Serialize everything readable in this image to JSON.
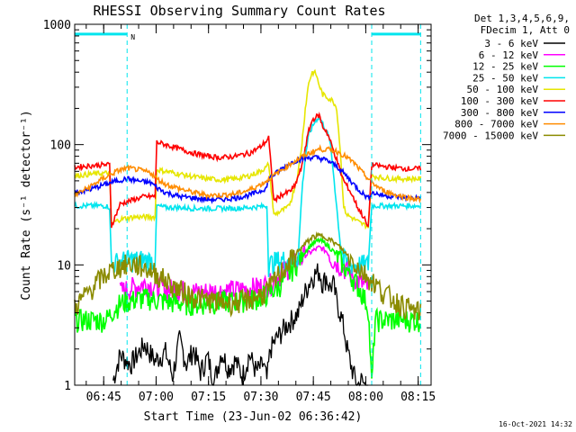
{
  "chart_data": {
    "type": "line",
    "title": "RHESSI Observing Summary Count Rates",
    "xlabel": "Start Time (23-Jun-02 06:36:42)",
    "ylabel": "Count Rate (s⁻¹ detector⁻¹)",
    "x_units": "minutes after 06:36:42",
    "xlim": [
      0,
      102
    ],
    "ylim": [
      1,
      1000
    ],
    "y_scale": "log",
    "x_ticks": [
      {
        "value": 8.3,
        "label": "06:45"
      },
      {
        "value": 23.3,
        "label": "07:00"
      },
      {
        "value": 38.3,
        "label": "07:15"
      },
      {
        "value": 53.3,
        "label": "07:30"
      },
      {
        "value": 68.3,
        "label": "07:45"
      },
      {
        "value": 83.3,
        "label": "08:00"
      },
      {
        "value": 98.3,
        "label": "08:15"
      }
    ],
    "y_ticks": [
      {
        "value": 1,
        "label": "1"
      },
      {
        "value": 10,
        "label": "10"
      },
      {
        "value": 100,
        "label": "100"
      },
      {
        "value": 1000,
        "label": "1000"
      }
    ],
    "legend_header": [
      "Det 1,3,4,5,6,9,",
      "FDecim 1, Att 0"
    ],
    "legend_position": "right",
    "timestamp": "16-Oct-2021 14:32",
    "night_marker": "N",
    "flag_bars": [
      {
        "x": [
          0,
          15
        ],
        "y": 830,
        "color": "#00e5ee"
      },
      {
        "x": [
          85,
          99
        ],
        "y": 830,
        "color": "#00e5ee"
      }
    ],
    "vlines": [
      {
        "x": 15,
        "style": "dashed",
        "color": "#00e5ee"
      },
      {
        "x": 85,
        "style": "dashed",
        "color": "#00e5ee"
      },
      {
        "x": 99,
        "style": "dashed",
        "color": "#00e5ee"
      }
    ],
    "series": [
      {
        "name": "3 - 6 keV",
        "color": "#000000",
        "x": [
          11,
          13,
          16,
          20,
          23,
          26,
          28,
          30,
          32,
          34,
          36,
          38,
          40,
          42,
          44,
          46,
          48,
          50,
          52,
          54,
          55,
          56,
          58,
          60,
          62,
          64,
          65,
          66,
          67,
          68,
          69,
          70,
          71,
          72,
          73,
          74,
          75,
          76,
          77,
          78,
          79,
          80,
          81,
          82,
          83,
          84
        ],
        "y": [
          1.1,
          1.8,
          1.5,
          2.2,
          1.6,
          1.9,
          1.2,
          2.4,
          1.5,
          2.0,
          1.3,
          1.7,
          1.1,
          1.9,
          1.4,
          1.6,
          1.2,
          1.8,
          1.3,
          1.5,
          1.1,
          2.0,
          2.5,
          3.0,
          3.5,
          4.0,
          5.0,
          6.0,
          7.0,
          8.0,
          8.5,
          9.0,
          7.0,
          8.0,
          6.5,
          7.0,
          5.0,
          4.0,
          3.0,
          2.0,
          1.5,
          1.2,
          1.0,
          1.1,
          1.0,
          1.0
        ]
      },
      {
        "name": "6 - 12 keV",
        "color": "#ff00ff",
        "x": [
          13,
          15,
          17,
          20,
          23,
          26,
          30,
          34,
          38,
          42,
          46,
          50,
          53,
          56,
          58,
          60,
          62,
          64,
          66,
          68,
          70,
          72,
          74,
          76,
          78,
          80,
          82,
          84
        ],
        "y": [
          6,
          6.3,
          6.6,
          7,
          6.7,
          6.4,
          6.2,
          6,
          6,
          6.1,
          6.2,
          6.4,
          6.6,
          7,
          8,
          9,
          10,
          11,
          12,
          13,
          14,
          13,
          11,
          10,
          9,
          8,
          7,
          6.5
        ]
      },
      {
        "name": "12 - 25 keV",
        "color": "#00ff00",
        "x": [
          0,
          5,
          9,
          11,
          13,
          15,
          18,
          21,
          24,
          28,
          32,
          36,
          40,
          44,
          48,
          51,
          54,
          56,
          58,
          60,
          62,
          64,
          66,
          68,
          70,
          72,
          74,
          76,
          78,
          80,
          82,
          84,
          85,
          86,
          88,
          90,
          92,
          94,
          96,
          98,
          99
        ],
        "y": [
          3.5,
          3.5,
          3.5,
          4.2,
          4.8,
          5,
          5.2,
          5.3,
          5.1,
          4.9,
          4.8,
          4.8,
          4.9,
          5,
          5.1,
          5.2,
          5.5,
          6,
          6.5,
          7.5,
          9,
          11,
          13,
          15,
          16,
          15,
          13,
          11,
          9,
          7.5,
          6,
          4.5,
          1,
          3.5,
          3.5,
          3.5,
          3.5,
          3.5,
          3.5,
          3.5,
          3.5
        ]
      },
      {
        "name": "25 - 50 keV",
        "color": "#00e5ee",
        "x": [
          0,
          5,
          9,
          10,
          10.5,
          12,
          15,
          18,
          20,
          22,
          23,
          23.5,
          26,
          30,
          34,
          38,
          42,
          46,
          50,
          53,
          55,
          55.5,
          57,
          59,
          61,
          63,
          64,
          65,
          66,
          67,
          68,
          69,
          70,
          71,
          72,
          73,
          74,
          75,
          76,
          77,
          78,
          80,
          82,
          84,
          85,
          88,
          92,
          96,
          99
        ],
        "y": [
          31,
          31,
          31,
          30,
          10,
          10.5,
          11,
          11,
          11,
          11,
          11,
          31,
          30,
          30,
          29.5,
          29.5,
          29.5,
          29.5,
          30,
          30.5,
          31,
          10,
          10.5,
          11,
          11,
          11.5,
          12,
          40,
          80,
          120,
          140,
          160,
          170,
          150,
          130,
          110,
          60,
          30,
          15,
          11,
          10.5,
          10,
          10,
          10,
          31,
          31,
          31,
          31,
          31
        ]
      },
      {
        "name": "50 - 100 keV",
        "color": "#e6e600",
        "x": [
          0,
          5,
          9,
          10,
          10.5,
          13,
          17,
          20,
          22,
          23,
          23.5,
          26,
          30,
          34,
          38,
          42,
          46,
          50,
          53,
          55,
          55.5,
          57,
          59,
          61,
          62,
          63,
          64,
          65,
          66,
          67,
          68,
          69,
          70,
          71,
          72,
          73,
          74,
          75,
          76,
          77,
          78,
          79,
          80,
          82,
          84,
          85,
          88,
          92,
          96,
          99
        ],
        "y": [
          55,
          57,
          58,
          58,
          22,
          24,
          25,
          25,
          25,
          25,
          62,
          60,
          57,
          54,
          52,
          51,
          52,
          55,
          60,
          65,
          70,
          26,
          28,
          30,
          35,
          45,
          60,
          100,
          200,
          330,
          400,
          390,
          310,
          260,
          250,
          240,
          230,
          200,
          90,
          30,
          26,
          25,
          24,
          22,
          21,
          55,
          53,
          52,
          52,
          52
        ]
      },
      {
        "name": "100 - 300 keV",
        "color": "#ff0000",
        "x": [
          0,
          5,
          9,
          10,
          10.5,
          13,
          17,
          20,
          22,
          23,
          23.5,
          26,
          30,
          34,
          38,
          42,
          46,
          50,
          53,
          55,
          55.5,
          57,
          59,
          61,
          62,
          63,
          64,
          65,
          66,
          67,
          68,
          69,
          70,
          71,
          72,
          73,
          74,
          75,
          76,
          77,
          78,
          79,
          80,
          81,
          82,
          83,
          84,
          85,
          88,
          92,
          96,
          99
        ],
        "y": [
          65,
          67,
          68,
          68,
          21,
          32,
          35,
          37,
          37,
          37,
          105,
          100,
          92,
          85,
          80,
          78,
          80,
          85,
          95,
          108,
          115,
          34,
          38,
          40,
          42,
          45,
          55,
          65,
          95,
          130,
          160,
          170,
          175,
          140,
          130,
          110,
          90,
          75,
          60,
          50,
          45,
          40,
          35,
          30,
          27,
          24,
          20,
          68,
          66,
          64,
          63,
          63
        ]
      },
      {
        "name": "300 - 800 keV",
        "color": "#0000ff",
        "x": [
          0,
          4,
          8,
          12,
          15,
          18,
          22,
          23.5,
          26,
          30,
          34,
          38,
          42,
          46,
          50,
          53,
          55,
          55.5,
          57,
          59,
          61,
          63,
          65,
          67,
          69,
          71,
          73,
          75,
          77,
          79,
          81,
          83,
          84,
          85,
          88,
          92,
          96,
          99
        ],
        "y": [
          40,
          42,
          46,
          50,
          52,
          50,
          48,
          44,
          40,
          37,
          36,
          35,
          35,
          36,
          38,
          41,
          44,
          52,
          56,
          62,
          68,
          73,
          76,
          78,
          78,
          76,
          72,
          66,
          58,
          50,
          43,
          38,
          36,
          40,
          38,
          37,
          36,
          36
        ]
      },
      {
        "name": "800 - 7000 keV",
        "color": "#ff8c00",
        "x": [
          0,
          4,
          8,
          12,
          15,
          18,
          22,
          23.5,
          26,
          30,
          34,
          38,
          42,
          46,
          50,
          54,
          58,
          62,
          66,
          70,
          74,
          76,
          78,
          80,
          82,
          84,
          86,
          88,
          92,
          96,
          99
        ],
        "y": [
          38,
          44,
          52,
          60,
          64,
          62,
          58,
          52,
          47,
          43,
          40,
          38,
          38,
          39,
          42,
          48,
          58,
          70,
          82,
          92,
          90,
          85,
          78,
          70,
          60,
          52,
          46,
          42,
          38,
          36,
          35
        ]
      },
      {
        "name": "7000 - 15000 keV",
        "color": "#8b8b00",
        "x": [
          0,
          2,
          4,
          6,
          8,
          10,
          12,
          14,
          16,
          18,
          20,
          22,
          24,
          26,
          28,
          30,
          34,
          38,
          42,
          46,
          50,
          54,
          56,
          58,
          60,
          62,
          64,
          66,
          68,
          70,
          72,
          74,
          76,
          78,
          80,
          82,
          84,
          86,
          88,
          90,
          92,
          94,
          96,
          99
        ],
        "y": [
          4.5,
          5.2,
          6,
          7,
          8,
          8.8,
          9.5,
          10,
          10.2,
          10,
          9.5,
          9,
          8.2,
          7.5,
          6.8,
          6.2,
          5.5,
          5.1,
          4.9,
          4.9,
          5.2,
          5.8,
          6.5,
          8,
          9.5,
          11,
          13,
          15,
          17,
          17.5,
          17,
          15.5,
          14,
          12,
          10.5,
          9,
          8,
          7,
          6,
          5.5,
          5,
          4.6,
          4.3,
          4
        ]
      }
    ]
  }
}
